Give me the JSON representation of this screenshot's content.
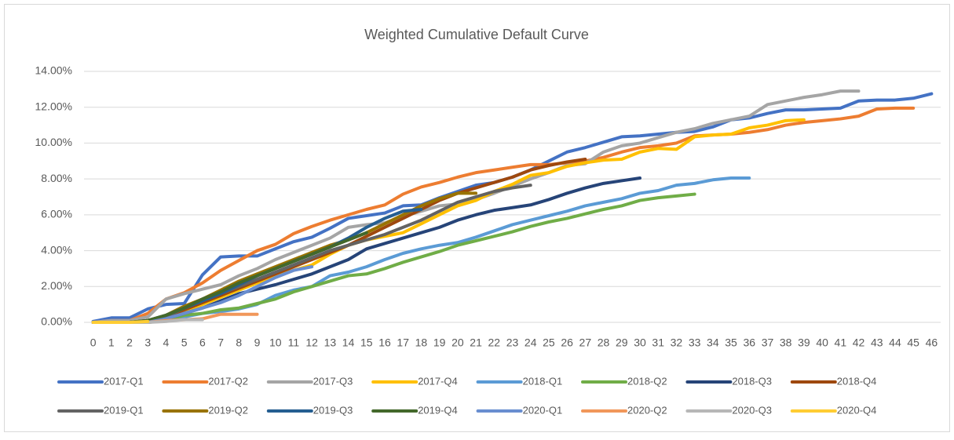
{
  "chart_data": {
    "type": "line",
    "title": "Weighted Cumulative Default Curve",
    "categories": [
      0,
      1,
      2,
      3,
      4,
      5,
      6,
      7,
      8,
      9,
      10,
      11,
      12,
      13,
      14,
      15,
      16,
      17,
      18,
      19,
      20,
      21,
      22,
      23,
      24,
      25,
      26,
      27,
      28,
      29,
      30,
      31,
      32,
      33,
      34,
      35,
      36,
      37,
      38,
      39,
      40,
      41,
      42,
      43,
      44,
      45,
      46
    ],
    "ylim": [
      0,
      14
    ],
    "yticks": [
      {
        "value": 0,
        "label": "0.00%"
      },
      {
        "value": 2,
        "label": "2.00%"
      },
      {
        "value": 4,
        "label": "4.00%"
      },
      {
        "value": 6,
        "label": "6.00%"
      },
      {
        "value": 8,
        "label": "8.00%"
      },
      {
        "value": 10,
        "label": "10.00%"
      },
      {
        "value": 12,
        "label": "12.00%"
      },
      {
        "value": 14,
        "label": "14.00%"
      }
    ],
    "grid": true,
    "legend": "bottom",
    "series": [
      {
        "name": "2017-Q1",
        "color": "#4472c4",
        "values": [
          0.05,
          0.25,
          0.25,
          0.75,
          1.0,
          1.05,
          2.65,
          3.65,
          3.7,
          3.7,
          4.1,
          4.5,
          4.75,
          5.25,
          5.8,
          5.95,
          6.1,
          6.5,
          6.55,
          6.95,
          7.3,
          7.65,
          7.8,
          8.1,
          8.5,
          9.0,
          9.5,
          9.75,
          10.05,
          10.35,
          10.4,
          10.5,
          10.6,
          10.65,
          10.9,
          11.3,
          11.4,
          11.65,
          11.85,
          11.85,
          11.9,
          11.95,
          12.35,
          12.4,
          12.4,
          12.5,
          12.75
        ]
      },
      {
        "name": "2017-Q2",
        "color": "#ed7d31",
        "values": [
          0,
          0.1,
          0.1,
          0.5,
          1.3,
          1.65,
          2.2,
          2.9,
          3.45,
          4.0,
          4.35,
          4.95,
          5.35,
          5.7,
          6.0,
          6.3,
          6.55,
          7.15,
          7.55,
          7.8,
          8.1,
          8.35,
          8.5,
          8.65,
          8.8,
          8.8,
          8.9,
          9.0,
          9.2,
          9.5,
          9.75,
          9.85,
          10.0,
          10.4,
          10.45,
          10.5,
          10.6,
          10.75,
          11.0,
          11.15,
          11.25,
          11.35,
          11.5,
          11.9,
          11.95,
          11.95,
          null
        ]
      },
      {
        "name": "2017-Q3",
        "color": "#a5a5a5",
        "values": [
          0,
          0.1,
          0.1,
          0.3,
          1.3,
          1.6,
          1.85,
          2.1,
          2.6,
          3.0,
          3.5,
          3.9,
          4.3,
          4.7,
          5.3,
          5.45,
          5.55,
          5.9,
          6.2,
          6.5,
          6.6,
          6.85,
          7.2,
          7.6,
          8.0,
          8.35,
          8.75,
          8.85,
          9.5,
          9.85,
          10.0,
          10.3,
          10.6,
          10.8,
          11.1,
          11.3,
          11.5,
          12.15,
          12.35,
          12.55,
          12.7,
          12.9,
          12.9,
          null,
          null,
          null,
          null
        ]
      },
      {
        "name": "2017-Q4",
        "color": "#ffc000",
        "values": [
          0,
          0,
          0,
          0.1,
          0.2,
          0.6,
          1.0,
          1.4,
          1.8,
          2.2,
          2.6,
          2.9,
          3.2,
          3.8,
          4.3,
          4.6,
          4.8,
          5.0,
          5.5,
          6.0,
          6.5,
          6.8,
          7.3,
          7.7,
          8.2,
          8.35,
          8.7,
          8.9,
          9.05,
          9.1,
          9.5,
          9.7,
          9.65,
          10.35,
          10.45,
          10.5,
          10.85,
          11.0,
          11.25,
          11.3,
          null,
          null,
          null,
          null,
          null,
          null,
          null
        ]
      },
      {
        "name": "2018-Q1",
        "color": "#5b9bd5",
        "values": [
          0,
          0,
          0,
          0,
          0.1,
          0.3,
          0.5,
          0.6,
          0.75,
          1.0,
          1.5,
          1.8,
          2.0,
          2.6,
          2.8,
          3.1,
          3.5,
          3.85,
          4.1,
          4.3,
          4.45,
          4.75,
          5.1,
          5.45,
          5.7,
          5.95,
          6.2,
          6.5,
          6.7,
          6.9,
          7.2,
          7.35,
          7.65,
          7.75,
          7.95,
          8.05,
          8.05,
          null,
          null,
          null,
          null,
          null,
          null,
          null,
          null,
          null,
          null
        ]
      },
      {
        "name": "2018-Q2",
        "color": "#70ad47",
        "values": [
          0,
          0,
          0,
          0,
          0.1,
          0.4,
          0.5,
          0.7,
          0.8,
          1.05,
          1.3,
          1.7,
          2.0,
          2.3,
          2.6,
          2.7,
          3.0,
          3.35,
          3.65,
          3.95,
          4.3,
          4.55,
          4.8,
          5.05,
          5.35,
          5.6,
          5.8,
          6.05,
          6.3,
          6.5,
          6.8,
          6.95,
          7.05,
          7.15,
          null,
          null,
          null,
          null,
          null,
          null,
          null,
          null,
          null,
          null,
          null,
          null,
          null
        ]
      },
      {
        "name": "2018-Q3",
        "color": "#264478",
        "values": [
          0,
          0,
          0,
          0,
          0.2,
          0.5,
          0.8,
          1.2,
          1.6,
          1.85,
          2.1,
          2.4,
          2.7,
          3.1,
          3.5,
          4.1,
          4.4,
          4.7,
          5.0,
          5.3,
          5.7,
          6.0,
          6.25,
          6.4,
          6.55,
          6.85,
          7.2,
          7.5,
          7.75,
          7.9,
          8.05,
          null,
          null,
          null,
          null,
          null,
          null,
          null,
          null,
          null,
          null,
          null,
          null,
          null,
          null,
          null,
          null
        ]
      },
      {
        "name": "2018-Q4",
        "color": "#9e480e",
        "values": [
          0,
          0,
          0,
          0.1,
          0.3,
          0.7,
          1.1,
          1.5,
          1.9,
          2.3,
          2.7,
          3.1,
          3.5,
          3.9,
          4.3,
          4.8,
          5.3,
          5.8,
          6.3,
          6.8,
          7.2,
          7.5,
          7.8,
          8.1,
          8.5,
          8.75,
          8.95,
          9.1,
          null,
          null,
          null,
          null,
          null,
          null,
          null,
          null,
          null,
          null,
          null,
          null,
          null,
          null,
          null,
          null,
          null,
          null,
          null
        ]
      },
      {
        "name": "2019-Q1",
        "color": "#636363",
        "values": [
          0,
          0,
          0,
          0.1,
          0.3,
          0.8,
          1.2,
          1.6,
          2.0,
          2.4,
          2.8,
          3.2,
          3.6,
          4.0,
          4.3,
          4.6,
          4.9,
          5.3,
          5.7,
          6.2,
          6.7,
          7.0,
          7.3,
          7.5,
          7.65,
          null,
          null,
          null,
          null,
          null,
          null,
          null,
          null,
          null,
          null,
          null,
          null,
          null,
          null,
          null,
          null,
          null,
          null,
          null,
          null,
          null,
          null
        ]
      },
      {
        "name": "2019-Q2",
        "color": "#997300",
        "values": [
          0,
          0,
          0,
          0.1,
          0.4,
          0.9,
          1.3,
          1.8,
          2.3,
          2.7,
          3.1,
          3.5,
          3.9,
          4.3,
          4.6,
          5.0,
          5.5,
          6.0,
          6.5,
          6.9,
          7.2,
          7.2,
          null,
          null,
          null,
          null,
          null,
          null,
          null,
          null,
          null,
          null,
          null,
          null,
          null,
          null,
          null,
          null,
          null,
          null,
          null,
          null,
          null,
          null,
          null,
          null,
          null
        ]
      },
      {
        "name": "2019-Q3",
        "color": "#255e91",
        "values": [
          0,
          0,
          0,
          0.1,
          0.4,
          0.8,
          1.2,
          1.6,
          2.1,
          2.6,
          3.0,
          3.4,
          3.8,
          4.2,
          4.7,
          5.3,
          5.8,
          6.2,
          6.3,
          null,
          null,
          null,
          null,
          null,
          null,
          null,
          null,
          null,
          null,
          null,
          null,
          null,
          null,
          null,
          null,
          null,
          null,
          null,
          null,
          null,
          null,
          null,
          null,
          null,
          null,
          null,
          null
        ]
      },
      {
        "name": "2019-Q4",
        "color": "#43682b",
        "values": [
          0,
          0,
          0,
          0.1,
          0.4,
          0.8,
          1.3,
          1.7,
          2.2,
          2.6,
          3.0,
          3.4,
          3.8,
          4.2,
          4.6,
          5.0,
          null,
          null,
          null,
          null,
          null,
          null,
          null,
          null,
          null,
          null,
          null,
          null,
          null,
          null,
          null,
          null,
          null,
          null,
          null,
          null,
          null,
          null,
          null,
          null,
          null,
          null,
          null,
          null,
          null,
          null,
          null
        ]
      },
      {
        "name": "2020-Q1",
        "color": "#698ed0",
        "values": [
          0,
          0,
          0,
          0,
          0.2,
          0.5,
          0.8,
          1.1,
          1.5,
          2.0,
          2.5,
          2.9,
          3.1,
          null,
          null,
          null,
          null,
          null,
          null,
          null,
          null,
          null,
          null,
          null,
          null,
          null,
          null,
          null,
          null,
          null,
          null,
          null,
          null,
          null,
          null,
          null,
          null,
          null,
          null,
          null,
          null,
          null,
          null,
          null,
          null,
          null,
          null
        ]
      },
      {
        "name": "2020-Q2",
        "color": "#f1975a",
        "values": [
          0,
          0,
          0,
          0,
          0.1,
          0.15,
          0.2,
          0.45,
          0.45,
          0.45,
          null,
          null,
          null,
          null,
          null,
          null,
          null,
          null,
          null,
          null,
          null,
          null,
          null,
          null,
          null,
          null,
          null,
          null,
          null,
          null,
          null,
          null,
          null,
          null,
          null,
          null,
          null,
          null,
          null,
          null,
          null,
          null,
          null,
          null,
          null,
          null,
          null
        ]
      },
      {
        "name": "2020-Q3",
        "color": "#b7b7b7",
        "values": [
          0,
          0,
          0,
          0,
          0.05,
          0.15,
          0.15,
          null,
          null,
          null,
          null,
          null,
          null,
          null,
          null,
          null,
          null,
          null,
          null,
          null,
          null,
          null,
          null,
          null,
          null,
          null,
          null,
          null,
          null,
          null,
          null,
          null,
          null,
          null,
          null,
          null,
          null,
          null,
          null,
          null,
          null,
          null,
          null,
          null,
          null,
          null,
          null
        ]
      },
      {
        "name": "2020-Q4",
        "color": "#ffcd33",
        "values": [
          0,
          0,
          0,
          0.05,
          null,
          null,
          null,
          null,
          null,
          null,
          null,
          null,
          null,
          null,
          null,
          null,
          null,
          null,
          null,
          null,
          null,
          null,
          null,
          null,
          null,
          null,
          null,
          null,
          null,
          null,
          null,
          null,
          null,
          null,
          null,
          null,
          null,
          null,
          null,
          null,
          null,
          null,
          null,
          null,
          null,
          null,
          null
        ]
      }
    ]
  }
}
